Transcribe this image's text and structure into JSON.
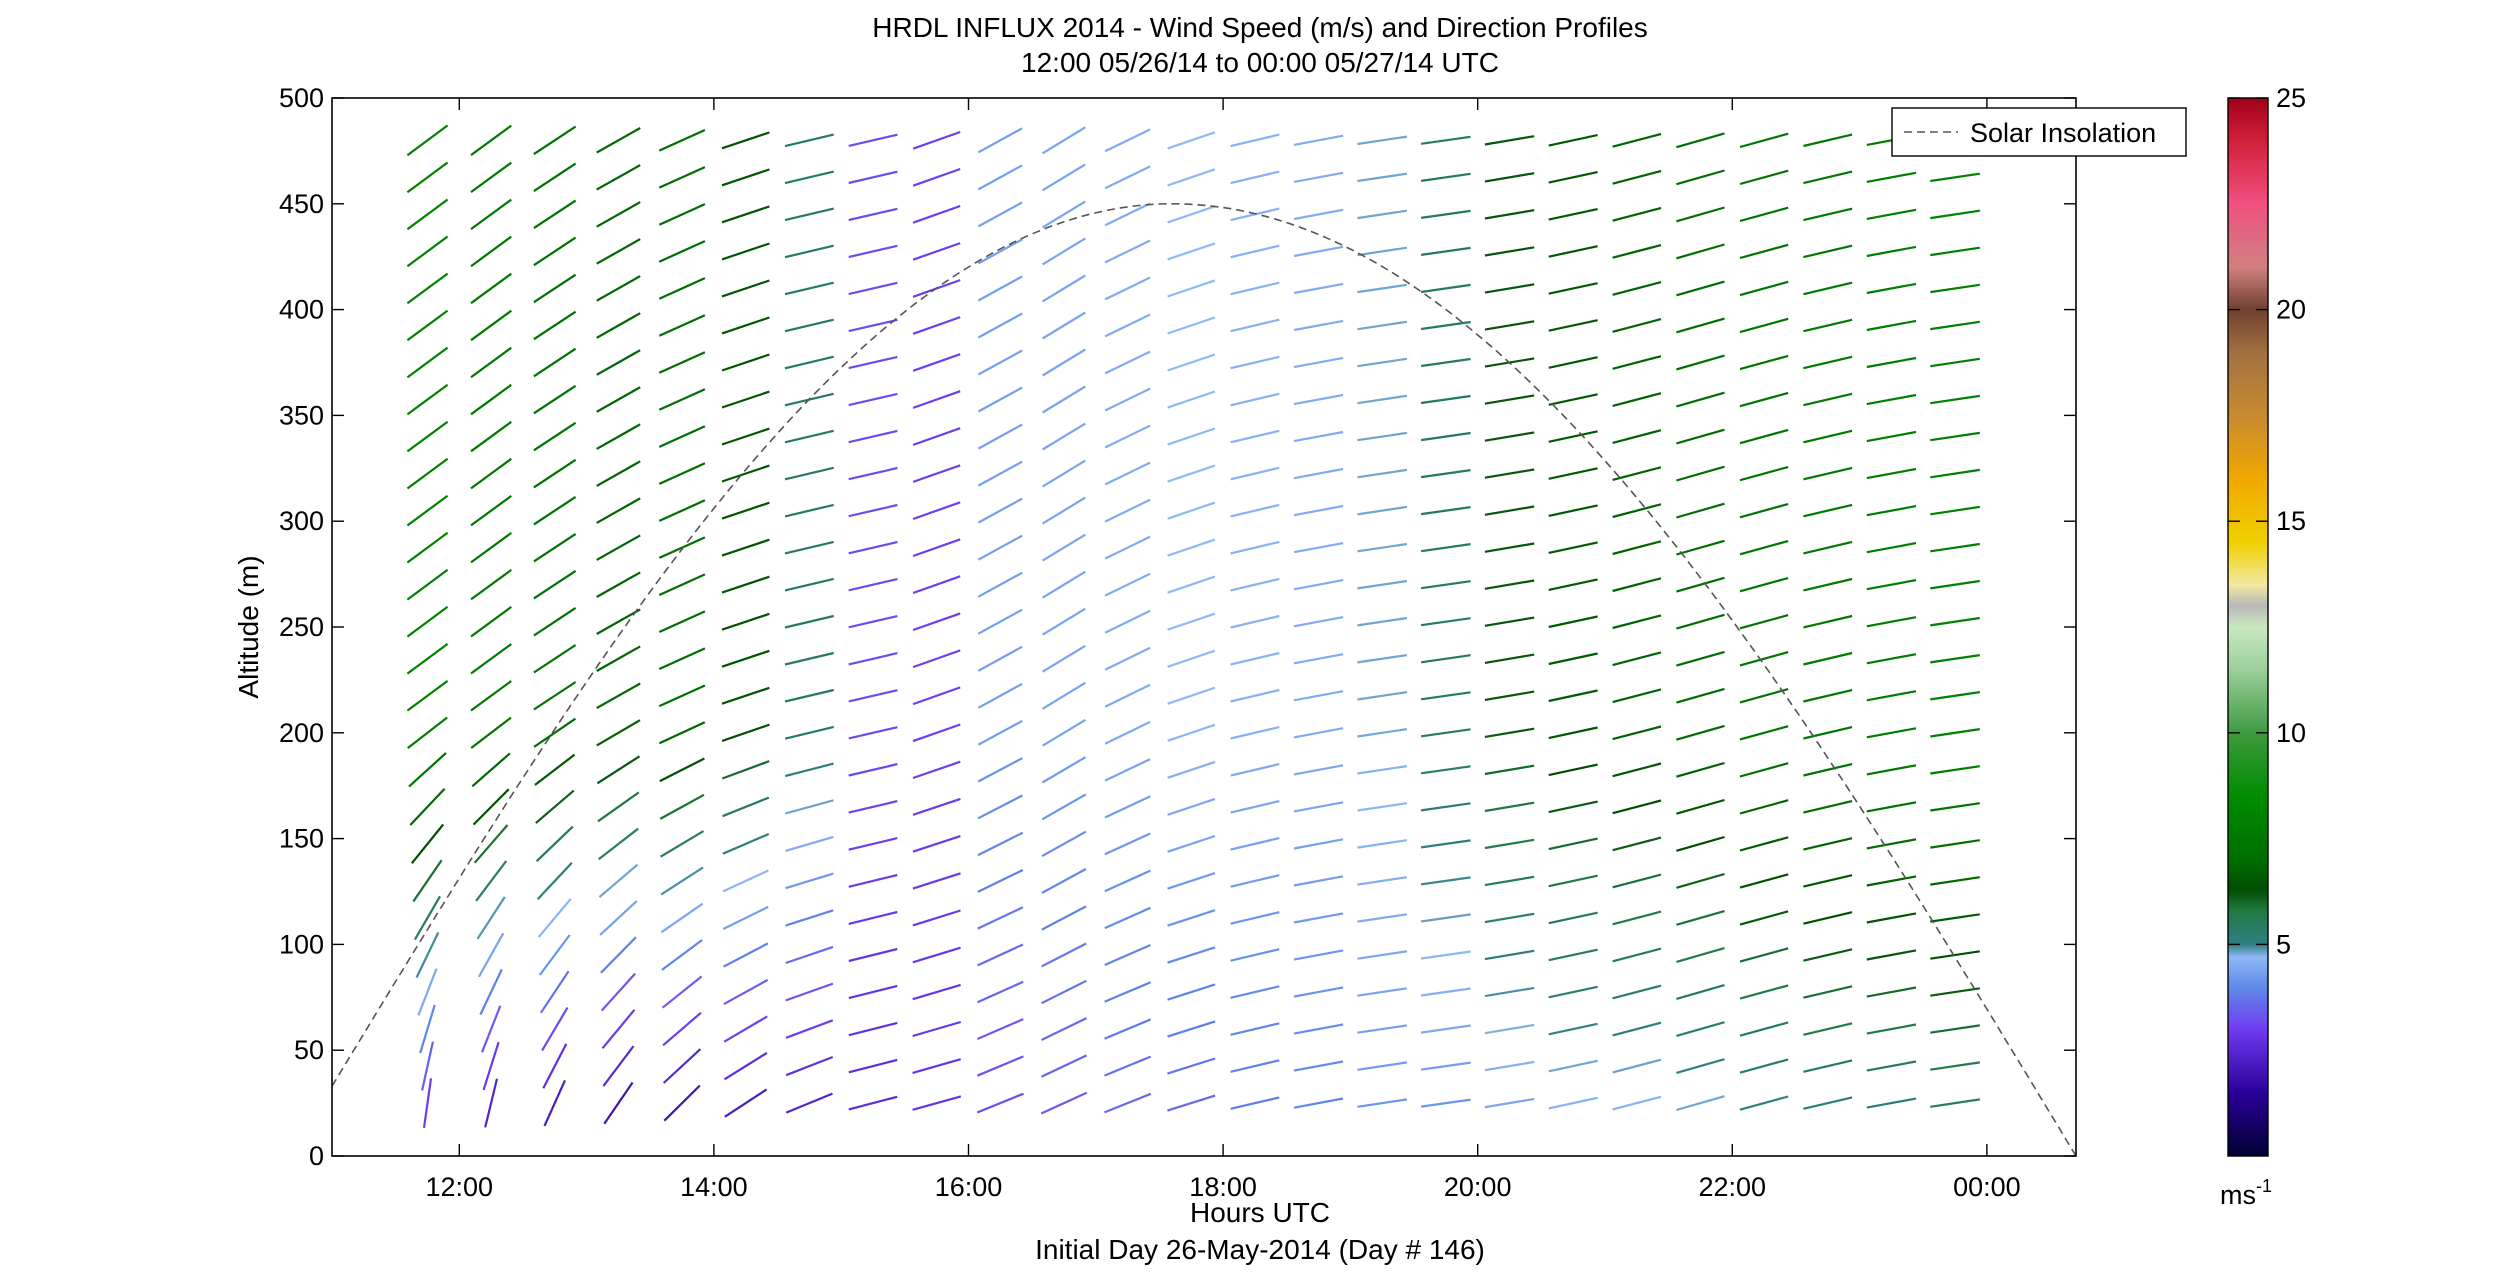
{
  "chart_data": {
    "type": "wind-barb-profile",
    "title": "HRDL INFLUX 2014 - Wind Speed (m/s) and Direction Profiles",
    "subtitle": "12:00 05/26/14 to 00:00 05/27/14  UTC",
    "xlabel": "Hours UTC",
    "xlabel2": "Initial Day 26-May-2014 (Day # 146)",
    "ylabel": "Altitude (m)",
    "xlim_hours": [
      11.0,
      24.7
    ],
    "ylim": [
      0,
      500
    ],
    "x_ticks": [
      {
        "hour": 12,
        "label": "12:00"
      },
      {
        "hour": 14,
        "label": "14:00"
      },
      {
        "hour": 16,
        "label": "16:00"
      },
      {
        "hour": 18,
        "label": "18:00"
      },
      {
        "hour": 20,
        "label": "20:00"
      },
      {
        "hour": 22,
        "label": "22:00"
      },
      {
        "hour": 24,
        "label": "00:00"
      }
    ],
    "y_ticks": [
      "0",
      "50",
      "100",
      "150",
      "200",
      "250",
      "300",
      "350",
      "400",
      "450",
      "500"
    ],
    "legend": {
      "entries": [
        "Solar Insolation"
      ],
      "placement": "top-right"
    },
    "solar_insolation": {
      "start_hour": 11.0,
      "start_alt": 33,
      "peak_hour": 17.6,
      "peak_alt": 450,
      "end_hour": 24.7,
      "end_alt": 0
    },
    "colorbar": {
      "min": 0,
      "max": 25,
      "ticks": [
        "5",
        "10",
        "15",
        "20",
        "25"
      ],
      "unit_label": "ms",
      "unit_exponent": "-1",
      "stops": [
        {
          "v": 0.0,
          "c": "#000033"
        },
        {
          "v": 1.5,
          "c": "#2a0099"
        },
        {
          "v": 3.0,
          "c": "#6f3cf0"
        },
        {
          "v": 4.0,
          "c": "#5f8ae8"
        },
        {
          "v": 4.7,
          "c": "#8fb8f5"
        },
        {
          "v": 5.0,
          "c": "#2f7f84"
        },
        {
          "v": 5.8,
          "c": "#1f7a3f"
        },
        {
          "v": 6.3,
          "c": "#004d00"
        },
        {
          "v": 7.0,
          "c": "#006e00"
        },
        {
          "v": 8.5,
          "c": "#008c00"
        },
        {
          "v": 10.0,
          "c": "#3f9a3f"
        },
        {
          "v": 11.5,
          "c": "#9cd09c"
        },
        {
          "v": 12.5,
          "c": "#c8e8c0"
        },
        {
          "v": 13.0,
          "c": "#b8b8b8"
        },
        {
          "v": 13.5,
          "c": "#f2e8a0"
        },
        {
          "v": 14.5,
          "c": "#f0d000"
        },
        {
          "v": 16.0,
          "c": "#f0a800"
        },
        {
          "v": 17.5,
          "c": "#c88a30"
        },
        {
          "v": 19.0,
          "c": "#a07040"
        },
        {
          "v": 20.0,
          "c": "#704030"
        },
        {
          "v": 21.0,
          "c": "#d08080"
        },
        {
          "v": 22.5,
          "c": "#f05080"
        },
        {
          "v": 24.0,
          "c": "#d0203a"
        },
        {
          "v": 25.0,
          "c": "#a0001a"
        }
      ]
    },
    "wind_grid": {
      "hours": [
        11.75,
        12.25,
        12.75,
        13.25,
        13.75,
        14.25,
        14.75,
        15.25,
        15.75,
        16.25,
        16.75,
        17.25,
        17.75,
        18.25,
        18.75,
        19.25,
        19.75,
        20.25,
        20.75,
        21.25,
        21.75,
        22.25,
        22.75,
        23.25,
        23.75
      ],
      "first_altitude_m": 25,
      "altitude_step_m": 17.5,
      "max_altitude_m": 488,
      "direction_deg_note": "approx. southwesterly aloft, veering with time; southerly near surface before 15:00",
      "speed_by_column_ms": [
        8,
        7.5,
        7.2,
        6.8,
        7.0,
        6.5,
        5.5,
        3.2,
        3.0,
        4.3,
        4.4,
        4.5,
        4.7,
        4.6,
        4.5,
        4.8,
        5.5,
        6.2,
        6.6,
        6.8,
        7.0,
        7.4,
        7.6,
        7.8,
        8.0
      ],
      "lowest_level_speed_ms": [
        3.0,
        2.4,
        2.2,
        2.0,
        2.0,
        2.2,
        2.4,
        2.6,
        2.8,
        3.2,
        3.4,
        3.6,
        3.6,
        3.8,
        4.0,
        4.2,
        4.2,
        4.4,
        4.6,
        4.6,
        4.8,
        5.0,
        5.2,
        5.2,
        5.4
      ]
    }
  }
}
